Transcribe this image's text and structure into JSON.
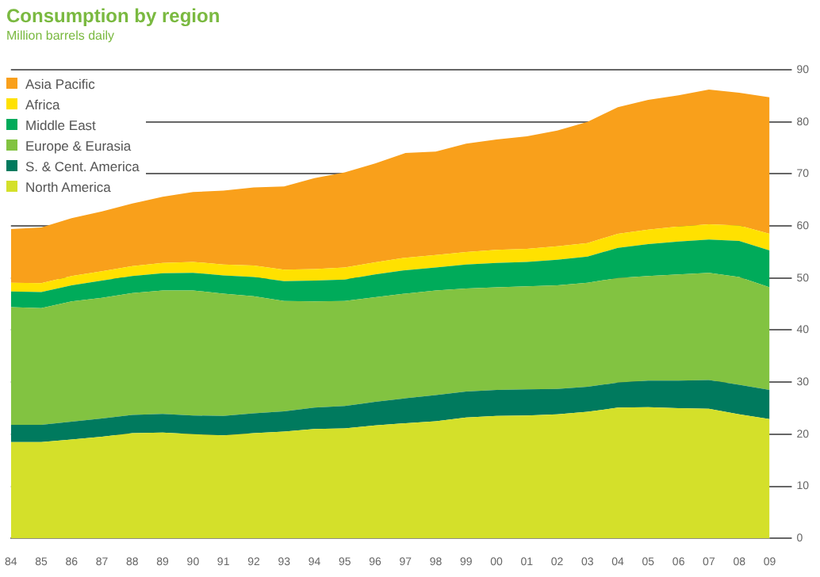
{
  "chart_data": {
    "type": "area",
    "stacked": true,
    "title": "Consumption by region",
    "subtitle": "Million barrels daily",
    "categories": [
      "84",
      "85",
      "86",
      "87",
      "88",
      "89",
      "90",
      "91",
      "92",
      "93",
      "94",
      "95",
      "96",
      "97",
      "98",
      "99",
      "00",
      "01",
      "02",
      "03",
      "04",
      "05",
      "06",
      "07",
      "08",
      "09"
    ],
    "series": [
      {
        "name": "North America",
        "color": "#d4e02a",
        "values": [
          18.5,
          18.5,
          19.0,
          19.5,
          20.2,
          20.3,
          20.0,
          19.8,
          20.2,
          20.5,
          21.0,
          21.1,
          21.7,
          22.1,
          22.5,
          23.2,
          23.5,
          23.6,
          23.8,
          24.3,
          25.1,
          25.2,
          25.0,
          24.9,
          23.8,
          22.9
        ]
      },
      {
        "name": "S. & Cent. America",
        "color": "#007a5e",
        "values": [
          3.3,
          3.3,
          3.4,
          3.5,
          3.5,
          3.6,
          3.6,
          3.7,
          3.8,
          3.9,
          4.1,
          4.3,
          4.5,
          4.8,
          5.0,
          5.0,
          5.0,
          5.0,
          4.9,
          4.8,
          4.8,
          5.1,
          5.3,
          5.5,
          5.7,
          5.6
        ]
      },
      {
        "name": "Europe & Eurasia",
        "color": "#82c341",
        "values": [
          22.6,
          22.4,
          23.1,
          23.2,
          23.4,
          23.7,
          24.0,
          23.5,
          22.5,
          21.2,
          20.4,
          20.2,
          20.1,
          20.1,
          20.1,
          19.8,
          19.7,
          19.8,
          19.9,
          20.0,
          20.1,
          20.1,
          20.4,
          20.6,
          20.7,
          19.7
        ]
      },
      {
        "name": "Middle East",
        "color": "#00ab5a",
        "values": [
          3.0,
          3.1,
          3.1,
          3.3,
          3.3,
          3.3,
          3.4,
          3.5,
          3.7,
          3.8,
          4.0,
          4.1,
          4.4,
          4.5,
          4.4,
          4.6,
          4.7,
          4.7,
          4.9,
          5.0,
          5.8,
          6.1,
          6.3,
          6.4,
          6.9,
          7.1
        ]
      },
      {
        "name": "Africa",
        "color": "#ffe100",
        "values": [
          1.7,
          1.7,
          1.8,
          1.8,
          1.9,
          2.0,
          2.1,
          2.1,
          2.2,
          2.2,
          2.2,
          2.3,
          2.3,
          2.4,
          2.4,
          2.4,
          2.5,
          2.5,
          2.6,
          2.6,
          2.7,
          2.8,
          2.9,
          2.9,
          3.0,
          3.2
        ]
      },
      {
        "name": "Asia Pacific",
        "color": "#f9a01b",
        "values": [
          10.3,
          10.7,
          11.1,
          11.5,
          12.0,
          12.7,
          13.4,
          14.2,
          15.0,
          16.0,
          17.5,
          18.3,
          19.0,
          20.1,
          19.9,
          20.8,
          21.2,
          21.6,
          22.2,
          23.3,
          24.3,
          24.9,
          25.2,
          25.9,
          25.5,
          26.2
        ]
      }
    ],
    "ylim": [
      0,
      90
    ],
    "yticks": [
      0,
      10,
      20,
      30,
      40,
      50,
      60,
      70,
      80,
      90
    ],
    "grid": "y",
    "legend": "top left"
  }
}
